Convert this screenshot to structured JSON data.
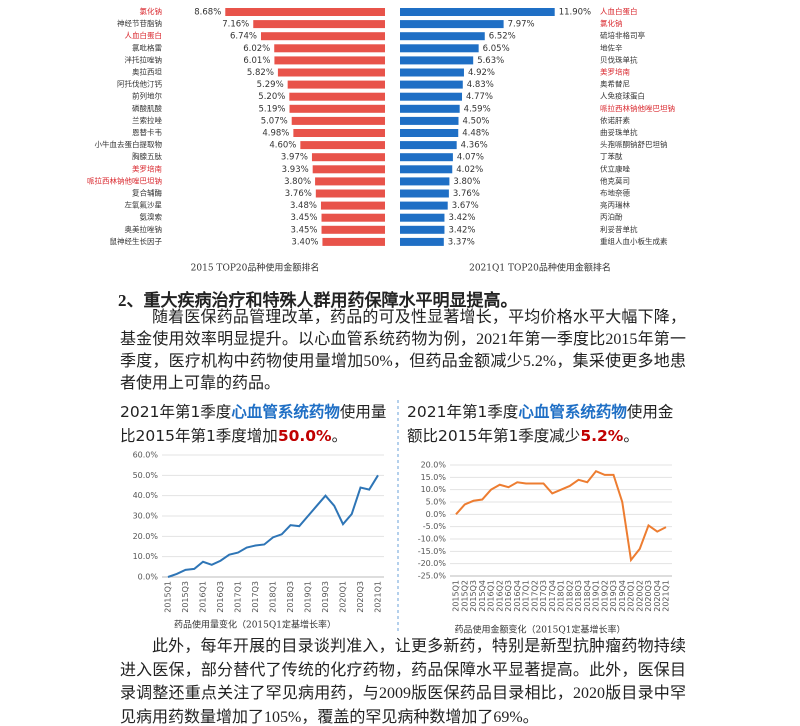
{
  "chart_data": [
    {
      "type": "hbar",
      "direction": "left",
      "title": "2015 TOP20品种使用金额排名",
      "color": "#e8534a",
      "categories": [
        "氯化钠",
        "神经节苷脂钠",
        "人血白蛋白",
        "氯吡格雷",
        "泮托拉唑钠",
        "奥拉西坦",
        "阿托伐他汀钙",
        "前列地尔",
        "磷酸肌酸",
        "兰索拉唑",
        "恩替卡韦",
        "小牛血去蛋白提取物",
        "胸腺五肽",
        "美罗培南",
        "哌拉西林钠他唑巴坦钠",
        "复合辅酶",
        "左氧氟沙星",
        "氨溴索",
        "奥美拉唑钠",
        "鼠神经生长因子"
      ],
      "category_colors": [
        "#d9262c",
        "#333",
        "#d9262c",
        "#333",
        "#333",
        "#333",
        "#333",
        "#333",
        "#333",
        "#333",
        "#333",
        "#333",
        "#333",
        "#d9262c",
        "#d9262c",
        "#333",
        "#333",
        "#333",
        "#333",
        "#333"
      ],
      "values": [
        8.68,
        7.16,
        6.74,
        6.02,
        6.01,
        5.82,
        5.29,
        5.2,
        5.19,
        5.07,
        4.98,
        4.6,
        3.97,
        3.93,
        3.8,
        3.76,
        3.48,
        3.45,
        3.45,
        3.4
      ],
      "value_labels": [
        "8.68%",
        "7.16%",
        "6.74%",
        "6.02%",
        "6.01%",
        "5.82%",
        "5.29%",
        "5.20%",
        "5.19%",
        "5.07%",
        "4.98%",
        "4.60%",
        "3.97%",
        "3.93%",
        "3.80%",
        "3.76%",
        "3.48%",
        "3.45%",
        "3.45%",
        "3.40%"
      ]
    },
    {
      "type": "hbar",
      "direction": "right",
      "title": "2021Q1 TOP20品种使用金额排名",
      "color": "#1f6fc5",
      "categories": [
        "人血白蛋白",
        "氯化钠",
        "硫培非格司亭",
        "地佐辛",
        "贝伐珠单抗",
        "美罗培南",
        "奥希替尼",
        "人免疫球蛋白",
        "哌拉西林钠他唑巴坦钠",
        "依诺肝素",
        "曲妥珠单抗",
        "头孢哌酮钠舒巴坦钠",
        "丁苯酞",
        "伏立康唑",
        "他克莫司",
        "布地奈德",
        "亮丙瑞林",
        "丙泊酚",
        "利妥昔单抗",
        "重组人血小板生成素"
      ],
      "category_colors": [
        "#d9262c",
        "#d9262c",
        "#333",
        "#333",
        "#333",
        "#d9262c",
        "#333",
        "#333",
        "#d9262c",
        "#333",
        "#333",
        "#333",
        "#333",
        "#333",
        "#333",
        "#333",
        "#333",
        "#333",
        "#333",
        "#333"
      ],
      "values": [
        11.9,
        7.97,
        6.52,
        6.05,
        5.63,
        4.92,
        4.83,
        4.77,
        4.59,
        4.5,
        4.48,
        4.36,
        4.07,
        4.02,
        3.8,
        3.76,
        3.67,
        3.42,
        3.42,
        3.37
      ],
      "value_labels": [
        "11.90%",
        "7.97%",
        "6.52%",
        "6.05%",
        "5.63%",
        "4.92%",
        "4.83%",
        "4.77%",
        "4.59%",
        "4.50%",
        "4.48%",
        "4.36%",
        "4.07%",
        "4.02%",
        "3.80%",
        "3.76%",
        "3.67%",
        "3.42%",
        "3.42%",
        "3.37%"
      ]
    },
    {
      "type": "line",
      "color": "#2e75b6",
      "grid": true,
      "title_parts": [
        {
          "text": "2021年第1季度",
          "color": "#222"
        },
        {
          "text": "心血管系统药物",
          "color": "#1f6fc5"
        },
        {
          "text": "使用量比2015年第1季度增加",
          "color": "#222"
        },
        {
          "text": "50.0%",
          "color": "#c00000"
        },
        {
          "text": "。",
          "color": "#222"
        }
      ],
      "caption": "药品使用量变化（2015Q1定基增长率）",
      "categories": [
        "2015Q1",
        null,
        "2015Q3",
        null,
        "2016Q1",
        null,
        "2016Q3",
        null,
        "2017Q1",
        null,
        "2017Q3",
        null,
        "2018Q1",
        null,
        "2018Q3",
        null,
        "2019Q1",
        null,
        "2019Q3",
        null,
        "2020Q1",
        null,
        "2020Q3",
        null,
        "2021Q1"
      ],
      "values": [
        0,
        1.5,
        3.5,
        4,
        7.5,
        6,
        8,
        11,
        12,
        14.5,
        15.5,
        16,
        19.5,
        21,
        25.5,
        25,
        30,
        35,
        40,
        35,
        26,
        31,
        44,
        43,
        50
      ],
      "ylim": [
        0,
        60
      ],
      "yticks": [
        {
          "value": 0,
          "label": "0.0%"
        },
        {
          "value": 10,
          "label": "10.0%"
        },
        {
          "value": 20,
          "label": "20.0%"
        },
        {
          "value": 30,
          "label": "30.0%"
        },
        {
          "value": 40,
          "label": "40.0%"
        },
        {
          "value": 50,
          "label": "50.0%"
        },
        {
          "value": 60,
          "label": "60.0%"
        }
      ]
    },
    {
      "type": "line",
      "color": "#ed7d31",
      "grid": true,
      "title_parts": [
        {
          "text": "2021年第1季度",
          "color": "#222"
        },
        {
          "text": "心血管系统药物",
          "color": "#1f6fc5"
        },
        {
          "text": "使用金额比2015年第1季度减少",
          "color": "#222"
        },
        {
          "text": "5.2%",
          "color": "#c00000"
        },
        {
          "text": "。",
          "color": "#222"
        }
      ],
      "caption": "药品使用金额变化（2015Q1定基增长率）",
      "categories": [
        "2015Q1",
        "2015Q2",
        "2015Q3",
        "2015Q4",
        "2016Q1",
        "2016Q2",
        "2016Q3",
        "2016Q4",
        "2017Q1",
        "2017Q2",
        "2017Q3",
        "2017Q4",
        "2018Q1",
        "2018Q2",
        "2018Q3",
        "2018Q4",
        "2019Q1",
        "2019Q2",
        "2019Q3",
        "2019Q4",
        "2020Q1",
        "2020Q2",
        "2020Q3",
        "2020Q4",
        "2021Q1"
      ],
      "values": [
        0,
        4,
        5.5,
        6,
        10,
        12,
        11,
        13,
        12.5,
        12.5,
        12.5,
        8.5,
        10,
        11.5,
        14,
        13,
        17.5,
        16,
        16,
        5,
        -18.5,
        -14,
        -4.5,
        -7,
        -5.2
      ],
      "ylim": [
        -25,
        20
      ],
      "yticks": [
        {
          "value": -25,
          "label": "-25.0%"
        },
        {
          "value": -20,
          "label": "-20.0%"
        },
        {
          "value": -15,
          "label": "-15.0%"
        },
        {
          "value": -10,
          "label": "-10.0%"
        },
        {
          "value": -5,
          "label": "-5.0%"
        },
        {
          "value": 0,
          "label": "0.0%"
        },
        {
          "value": 5,
          "label": "5.0%"
        },
        {
          "value": 10,
          "label": "10.0%"
        },
        {
          "value": 15,
          "label": "15.0%"
        },
        {
          "value": 20,
          "label": "20.0%"
        }
      ]
    }
  ],
  "document": {
    "heading": "2、重大疾病治疗和特殊人群用药保障水平明显提高。",
    "paragraphs": [
      "随着医保药品管理改革，药品的可及性显著增长，平均价格水平大幅下降，基金使用效率明显提升。以心血管系统药物为例，2021年第一季度比2015年第一季度，医疗机构中药物使用量增加50%，但药品金额减少5.2%，集采使更多地患者使用上可靠的药品。",
      "此外，每年开展的目录谈判准入，让更多新药，特别是新型抗肿瘤药物持续进入医保，部分替代了传统的化疗药物，药品保障水平显著提高。此外，医保目录调整还重点关注了罕见病用药，与2009版医保药品目录相比，2020版目录中罕见病用药数量增加了105%，覆盖的罕见病种数增加了69%。"
    ]
  }
}
